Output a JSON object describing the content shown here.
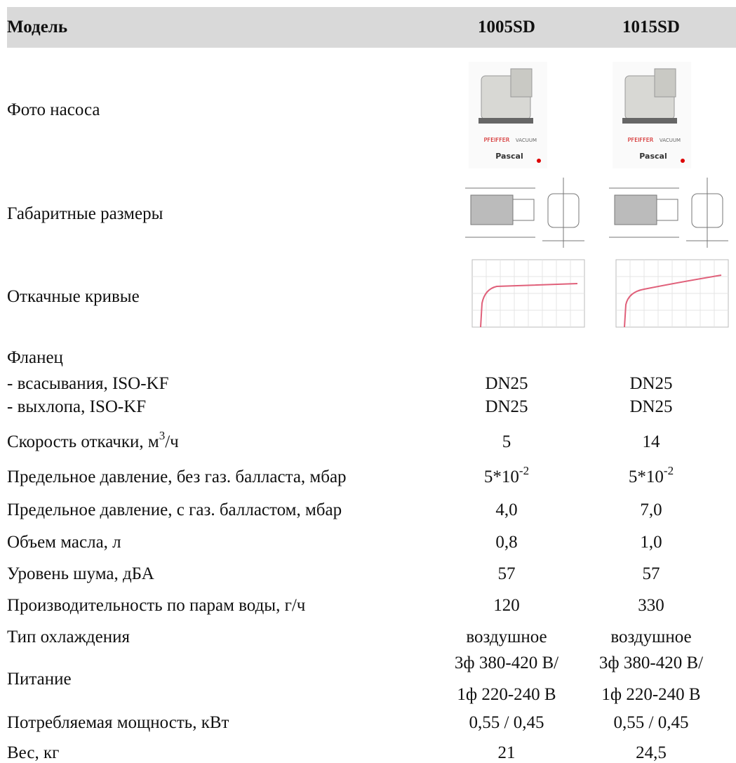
{
  "header": {
    "label": "Модель",
    "models": [
      "1005SD",
      "1015SD"
    ]
  },
  "rows": [
    {
      "label": "Фото насоса",
      "images": [
        {
          "brand": "PFEIFFER",
          "sub": "VACUUM",
          "name": "Pascal"
        },
        {
          "brand": "PFEIFFER",
          "sub": "VACUUM",
          "name": "Pascal"
        }
      ]
    },
    {
      "label": "Габаритные размеры"
    },
    {
      "label": "Откачные кривые"
    },
    {
      "label": "Фланец",
      "lines": [
        {
          "label": "- всасывания, ISO-KF",
          "values": [
            "DN25",
            "DN25"
          ]
        },
        {
          "label": "- выхлопа, ISO-KF",
          "values": [
            "DN25",
            "DN25"
          ]
        }
      ]
    },
    {
      "label": "Скорость откачки, м",
      "label_sup": "3",
      "label_end": "/ч",
      "values": [
        "5",
        "14"
      ]
    },
    {
      "label": "Предельное давление, без газ. балласта, мбар",
      "values": [
        {
          "base": "5*10",
          "sup": "-2"
        },
        {
          "base": "5*10",
          "sup": "-2"
        }
      ]
    },
    {
      "label": "Предельное давление, с газ. балластом, мбар",
      "values": [
        "4,0",
        "7,0"
      ]
    },
    {
      "label": "Объем масла, л",
      "values": [
        "0,8",
        "1,0"
      ]
    },
    {
      "label": "Уровень шума, дБА",
      "values": [
        "57",
        "57"
      ]
    },
    {
      "label": "Производительность по парам воды, г/ч",
      "values": [
        "120",
        "330"
      ]
    },
    {
      "label": "Тип охлаждения",
      "values": [
        "воздушное",
        "воздушное"
      ]
    },
    {
      "label": "Питание",
      "values": [
        [
          "3ф 380-420 В/",
          "1ф 220-240 В"
        ],
        [
          "3ф 380-420 В/",
          "1ф 220-240 В"
        ]
      ]
    },
    {
      "label": "Потребляемая мощность, кВт",
      "values": [
        "0,55 / 0,45",
        "0,55 / 0,45"
      ]
    },
    {
      "label": "Вес, кг",
      "values": [
        "21",
        "24,5"
      ]
    }
  ]
}
